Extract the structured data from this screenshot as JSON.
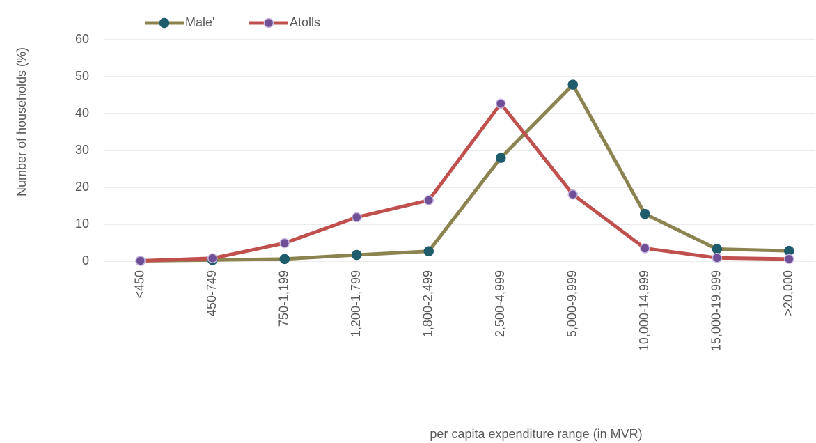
{
  "chart_data": {
    "type": "line",
    "x_label": "per capita expenditure range (in MVR)",
    "y_label": "Number of households (%)",
    "categories": [
      "<450",
      "450-749",
      "750-1,199",
      "1,200-1,799",
      "1,800-2,499",
      "2,500-4,999",
      "5,000-9,999",
      "10,000-14,999",
      "15,000-19,999",
      ">20,000"
    ],
    "series": [
      {
        "name": "Male'",
        "color": "#8c8450",
        "marker_color": "#1f5c6b",
        "values": [
          0.1,
          0.3,
          0.6,
          1.7,
          2.7,
          28,
          47.8,
          12.8,
          3.3,
          2.8
        ]
      },
      {
        "name": "Atolls",
        "color": "#c0504d",
        "marker_color": "#6f4f96",
        "values": [
          0.1,
          0.8,
          4.9,
          11.9,
          16.5,
          42.7,
          18.1,
          3.5,
          0.9,
          0.6
        ]
      }
    ],
    "ylim": [
      0,
      60
    ],
    "yticks": [
      0,
      10,
      20,
      30,
      40,
      50,
      60
    ],
    "grid": true,
    "legend": "top"
  }
}
